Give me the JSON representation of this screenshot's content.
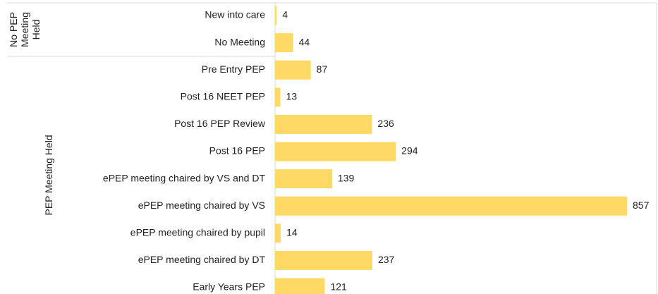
{
  "chart_data": {
    "type": "bar",
    "color": "#ffd966",
    "groups": [
      {
        "name": "No PEP Meeting Held",
        "categories": [
          "New into care",
          "No Meeting"
        ],
        "values": [
          4,
          44
        ]
      },
      {
        "name": "PEP Meeting Held",
        "categories": [
          "Pre Entry PEP",
          "Post 16 NEET PEP",
          "Post 16 PEP Review",
          "Post 16 PEP",
          "ePEP meeting chaired by VS and DT",
          "ePEP meeting chaired by VS",
          "ePEP meeting chaired by pupil",
          "ePEP meeting chaired by DT",
          "Early Years PEP"
        ],
        "values": [
          87,
          13,
          236,
          294,
          139,
          857,
          14,
          237,
          121
        ]
      }
    ]
  }
}
